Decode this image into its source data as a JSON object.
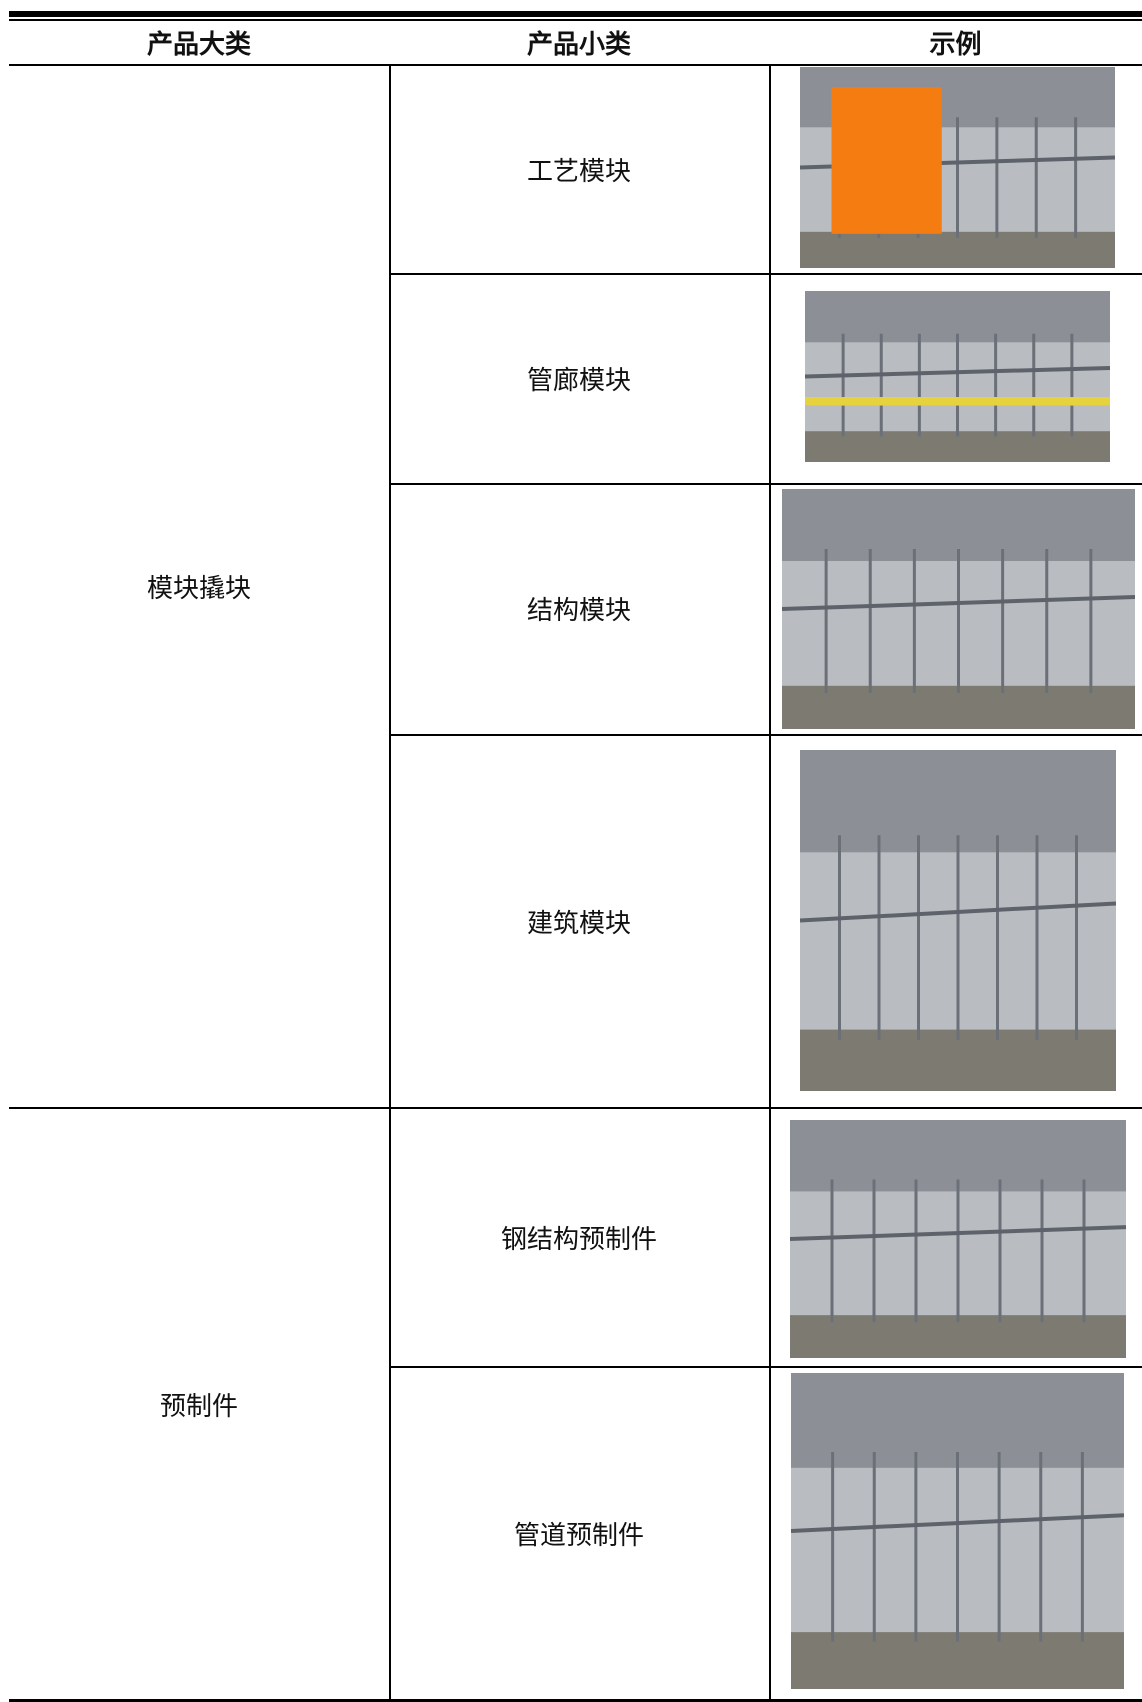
{
  "table": {
    "headers": [
      "产品大类",
      "产品小类",
      "示例"
    ],
    "groups": [
      {
        "category": "模块撬块",
        "items": [
          "工艺模块",
          "管廊模块",
          "结构模块",
          "建筑模块"
        ]
      },
      {
        "category": "预制件",
        "items": [
          "钢结构预制件",
          "管道预制件"
        ]
      }
    ]
  }
}
